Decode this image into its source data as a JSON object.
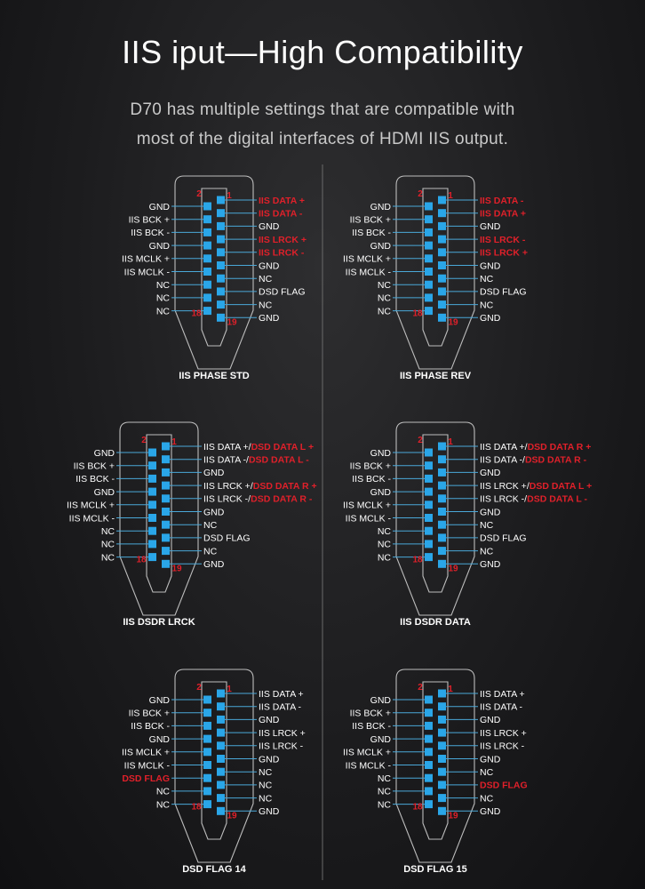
{
  "header": {
    "title": "IIS iput—High Compatibility",
    "subtitle_line1": "D70 has multiple settings that are compatible with",
    "subtitle_line2": "most of the digital interfaces of HDMI IIS output."
  },
  "colors": {
    "pin_blue": "#2aa6e8",
    "line_blue": "#4aa8d8",
    "highlight_red": "#e0202a",
    "label_white": "#ffffff",
    "connector_outline": "#bdbdbd",
    "background": "#1c1c1e"
  },
  "pin_number_labels": {
    "top_left": "2",
    "top_right": "1",
    "bottom_left": "18",
    "bottom_right": "19"
  },
  "panels": [
    {
      "caption": "IIS PHASE STD",
      "left_pins": [
        [
          {
            "t": "GND"
          }
        ],
        [
          {
            "t": "IIS BCK +"
          }
        ],
        [
          {
            "t": "IIS BCK -"
          }
        ],
        [
          {
            "t": "GND"
          }
        ],
        [
          {
            "t": "IIS MCLK +"
          }
        ],
        [
          {
            "t": "IIS MCLK -"
          }
        ],
        [
          {
            "t": "NC"
          }
        ],
        [
          {
            "t": "NC"
          }
        ],
        [
          {
            "t": "NC"
          }
        ]
      ],
      "right_pins": [
        [
          {
            "t": "IIS DATA +",
            "r": 1
          }
        ],
        [
          {
            "t": "IIS DATA -",
            "r": 1
          }
        ],
        [
          {
            "t": "GND"
          }
        ],
        [
          {
            "t": "IIS LRCK +",
            "r": 1
          }
        ],
        [
          {
            "t": "IIS LRCK -",
            "r": 1
          }
        ],
        [
          {
            "t": "GND"
          }
        ],
        [
          {
            "t": "NC"
          }
        ],
        [
          {
            "t": "DSD FLAG"
          }
        ],
        [
          {
            "t": "NC"
          }
        ],
        [
          {
            "t": "GND"
          }
        ]
      ]
    },
    {
      "caption": "IIS PHASE REV",
      "left_pins": [
        [
          {
            "t": "GND"
          }
        ],
        [
          {
            "t": "IIS BCK +"
          }
        ],
        [
          {
            "t": "IIS BCK -"
          }
        ],
        [
          {
            "t": "GND"
          }
        ],
        [
          {
            "t": "IIS MCLK +"
          }
        ],
        [
          {
            "t": "IIS MCLK -"
          }
        ],
        [
          {
            "t": "NC"
          }
        ],
        [
          {
            "t": "NC"
          }
        ],
        [
          {
            "t": "NC"
          }
        ]
      ],
      "right_pins": [
        [
          {
            "t": "IIS DATA -",
            "r": 1
          }
        ],
        [
          {
            "t": "IIS DATA +",
            "r": 1
          }
        ],
        [
          {
            "t": "GND"
          }
        ],
        [
          {
            "t": "IIS LRCK -",
            "r": 1
          }
        ],
        [
          {
            "t": "IIS LRCK +",
            "r": 1
          }
        ],
        [
          {
            "t": "GND"
          }
        ],
        [
          {
            "t": "NC"
          }
        ],
        [
          {
            "t": "DSD FLAG"
          }
        ],
        [
          {
            "t": "NC"
          }
        ],
        [
          {
            "t": "GND"
          }
        ]
      ]
    },
    {
      "caption": "IIS DSDR LRCK",
      "left_pins": [
        [
          {
            "t": "GND"
          }
        ],
        [
          {
            "t": "IIS BCK +"
          }
        ],
        [
          {
            "t": "IIS BCK -"
          }
        ],
        [
          {
            "t": "GND"
          }
        ],
        [
          {
            "t": "IIS MCLK +"
          }
        ],
        [
          {
            "t": "IIS MCLK -"
          }
        ],
        [
          {
            "t": "NC"
          }
        ],
        [
          {
            "t": "NC"
          }
        ],
        [
          {
            "t": "NC"
          }
        ]
      ],
      "right_pins": [
        [
          {
            "t": "IIS DATA +/"
          },
          {
            "t": "DSD DATA L +",
            "r": 1
          }
        ],
        [
          {
            "t": "IIS DATA -/"
          },
          {
            "t": "DSD DATA L -",
            "r": 1
          }
        ],
        [
          {
            "t": "GND"
          }
        ],
        [
          {
            "t": "IIS LRCK +/"
          },
          {
            "t": "DSD DATA R +",
            "r": 1
          }
        ],
        [
          {
            "t": "IIS LRCK -/"
          },
          {
            "t": "DSD DATA R -",
            "r": 1
          }
        ],
        [
          {
            "t": "GND"
          }
        ],
        [
          {
            "t": "NC"
          }
        ],
        [
          {
            "t": "DSD FLAG"
          }
        ],
        [
          {
            "t": "NC"
          }
        ],
        [
          {
            "t": "GND"
          }
        ]
      ]
    },
    {
      "caption": "IIS DSDR DATA",
      "left_pins": [
        [
          {
            "t": "GND"
          }
        ],
        [
          {
            "t": "IIS BCK +"
          }
        ],
        [
          {
            "t": "IIS BCK -"
          }
        ],
        [
          {
            "t": "GND"
          }
        ],
        [
          {
            "t": "IIS MCLK +"
          }
        ],
        [
          {
            "t": "IIS MCLK -"
          }
        ],
        [
          {
            "t": "NC"
          }
        ],
        [
          {
            "t": "NC"
          }
        ],
        [
          {
            "t": "NC"
          }
        ]
      ],
      "right_pins": [
        [
          {
            "t": "IIS DATA +/"
          },
          {
            "t": "DSD DATA R +",
            "r": 1
          }
        ],
        [
          {
            "t": "IIS DATA -/"
          },
          {
            "t": "DSD DATA R -",
            "r": 1
          }
        ],
        [
          {
            "t": "GND"
          }
        ],
        [
          {
            "t": "IIS LRCK +/"
          },
          {
            "t": "DSD DATA L +",
            "r": 1
          }
        ],
        [
          {
            "t": "IIS LRCK -/"
          },
          {
            "t": "DSD DATA L -",
            "r": 1
          }
        ],
        [
          {
            "t": "GND"
          }
        ],
        [
          {
            "t": "NC"
          }
        ],
        [
          {
            "t": "DSD FLAG"
          }
        ],
        [
          {
            "t": "NC"
          }
        ],
        [
          {
            "t": "GND"
          }
        ]
      ]
    },
    {
      "caption": "DSD FLAG 14",
      "left_pins": [
        [
          {
            "t": "GND"
          }
        ],
        [
          {
            "t": "IIS BCK +"
          }
        ],
        [
          {
            "t": "IIS BCK -"
          }
        ],
        [
          {
            "t": "GND"
          }
        ],
        [
          {
            "t": "IIS MCLK +"
          }
        ],
        [
          {
            "t": "IIS MCLK -"
          }
        ],
        [
          {
            "t": "DSD FLAG",
            "r": 1
          }
        ],
        [
          {
            "t": "NC"
          }
        ],
        [
          {
            "t": "NC"
          }
        ]
      ],
      "right_pins": [
        [
          {
            "t": "IIS DATA +"
          }
        ],
        [
          {
            "t": "IIS DATA -"
          }
        ],
        [
          {
            "t": "GND"
          }
        ],
        [
          {
            "t": "IIS LRCK +"
          }
        ],
        [
          {
            "t": "IIS LRCK -"
          }
        ],
        [
          {
            "t": "GND"
          }
        ],
        [
          {
            "t": "NC"
          }
        ],
        [
          {
            "t": "NC"
          }
        ],
        [
          {
            "t": "NC"
          }
        ],
        [
          {
            "t": "GND"
          }
        ]
      ]
    },
    {
      "caption": "DSD FLAG 15",
      "left_pins": [
        [
          {
            "t": "GND"
          }
        ],
        [
          {
            "t": "IIS BCK +"
          }
        ],
        [
          {
            "t": "IIS BCK -"
          }
        ],
        [
          {
            "t": "GND"
          }
        ],
        [
          {
            "t": "IIS MCLK +"
          }
        ],
        [
          {
            "t": "IIS MCLK -"
          }
        ],
        [
          {
            "t": "NC"
          }
        ],
        [
          {
            "t": "NC"
          }
        ],
        [
          {
            "t": "NC"
          }
        ]
      ],
      "right_pins": [
        [
          {
            "t": "IIS DATA +"
          }
        ],
        [
          {
            "t": "IIS DATA -"
          }
        ],
        [
          {
            "t": "GND"
          }
        ],
        [
          {
            "t": "IIS LRCK +"
          }
        ],
        [
          {
            "t": "IIS LRCK -"
          }
        ],
        [
          {
            "t": "GND"
          }
        ],
        [
          {
            "t": "NC"
          }
        ],
        [
          {
            "t": "DSD FLAG",
            "r": 1
          }
        ],
        [
          {
            "t": "NC"
          }
        ],
        [
          {
            "t": "GND"
          }
        ]
      ]
    }
  ]
}
